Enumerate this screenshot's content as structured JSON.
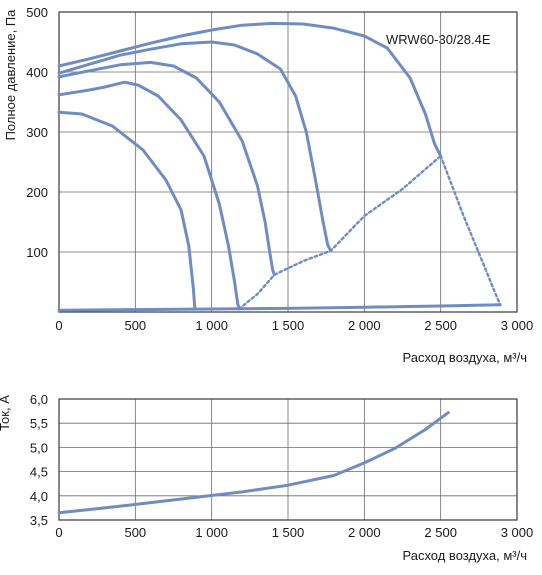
{
  "chart_data": [
    {
      "type": "line",
      "annotation": "WRW60-30/28.4E",
      "xlabel": "Расход воздуха, м³/ч",
      "ylabel": "Полное давление, Па",
      "xlim": [
        0,
        3000
      ],
      "ylim": [
        0,
        500
      ],
      "x_ticks": [
        0,
        500,
        1000,
        1500,
        2000,
        2500,
        3000
      ],
      "x_tick_labels": [
        "0",
        "500",
        "1 000",
        "1 500",
        "2 000",
        "2 500",
        "3 000"
      ],
      "y_ticks": [
        100,
        200,
        300,
        400,
        500
      ],
      "y_tick_labels": [
        "100",
        "200",
        "300",
        "400",
        "500"
      ],
      "grid": true,
      "color": "#6f8dc3",
      "series": [
        {
          "style": "solid",
          "points": [
            [
              0,
              333
            ],
            [
              150,
              330
            ],
            [
              350,
              310
            ],
            [
              550,
              270
            ],
            [
              700,
              220
            ],
            [
              800,
              170
            ],
            [
              850,
              110
            ],
            [
              880,
              40
            ],
            [
              890,
              5
            ]
          ]
        },
        {
          "style": "solid",
          "points": [
            [
              0,
              362
            ],
            [
              200,
              370
            ],
            [
              300,
              375
            ],
            [
              430,
              383
            ],
            [
              520,
              378
            ],
            [
              650,
              360
            ],
            [
              800,
              320
            ],
            [
              950,
              260
            ],
            [
              1050,
              180
            ],
            [
              1110,
              110
            ],
            [
              1150,
              50
            ],
            [
              1170,
              15
            ],
            [
              1180,
              5
            ]
          ]
        },
        {
          "style": "solid",
          "points": [
            [
              0,
              392
            ],
            [
              200,
              402
            ],
            [
              400,
              412
            ],
            [
              600,
              416
            ],
            [
              750,
              410
            ],
            [
              900,
              390
            ],
            [
              1050,
              350
            ],
            [
              1200,
              285
            ],
            [
              1300,
              210
            ],
            [
              1350,
              150
            ],
            [
              1380,
              100
            ],
            [
              1400,
              70
            ],
            [
              1410,
              62
            ]
          ]
        },
        {
          "style": "solid",
          "points": [
            [
              0,
              398
            ],
            [
              200,
              413
            ],
            [
              400,
              428
            ],
            [
              600,
              438
            ],
            [
              800,
              447
            ],
            [
              1000,
              450
            ],
            [
              1150,
              445
            ],
            [
              1300,
              430
            ],
            [
              1450,
              405
            ],
            [
              1550,
              360
            ],
            [
              1620,
              300
            ],
            [
              1680,
              220
            ],
            [
              1730,
              150
            ],
            [
              1760,
              112
            ],
            [
              1780,
              102
            ]
          ]
        },
        {
          "style": "solid",
          "points": [
            [
              0,
              410
            ],
            [
              200,
              422
            ],
            [
              400,
              435
            ],
            [
              600,
              448
            ],
            [
              800,
              460
            ],
            [
              1000,
              470
            ],
            [
              1200,
              478
            ],
            [
              1400,
              481
            ],
            [
              1600,
              480
            ],
            [
              1800,
              473
            ],
            [
              2000,
              460
            ],
            [
              2150,
              440
            ],
            [
              2300,
              390
            ],
            [
              2400,
              330
            ],
            [
              2460,
              280
            ],
            [
              2500,
              260
            ]
          ]
        },
        {
          "style": "dotted",
          "points": [
            [
              1180,
              5
            ],
            [
              1300,
              30
            ],
            [
              1410,
              62
            ],
            [
              1600,
              85
            ],
            [
              1780,
              102
            ],
            [
              2000,
              160
            ],
            [
              2250,
              205
            ],
            [
              2500,
              260
            ]
          ]
        },
        {
          "style": "dotted",
          "points": [
            [
              2500,
              260
            ],
            [
              2650,
              160
            ],
            [
              2780,
              80
            ],
            [
              2860,
              30
            ],
            [
              2890,
              12
            ]
          ]
        },
        {
          "style": "solid",
          "points": [
            [
              0,
              3
            ],
            [
              500,
              4
            ],
            [
              1000,
              5
            ],
            [
              1500,
              6
            ],
            [
              2000,
              8
            ],
            [
              2500,
              10
            ],
            [
              2890,
              12
            ]
          ]
        }
      ]
    },
    {
      "type": "line",
      "xlabel": "Расход воздуха, м³/ч",
      "ylabel": "Ток, А",
      "xlim": [
        0,
        3000
      ],
      "ylim": [
        3.5,
        6.0
      ],
      "x_ticks": [
        0,
        500,
        1000,
        1500,
        2000,
        2500,
        3000
      ],
      "x_tick_labels": [
        "0",
        "500",
        "1 000",
        "1 500",
        "2 000",
        "2 500",
        "3 000"
      ],
      "y_ticks": [
        3.5,
        4.0,
        4.5,
        5.0,
        5.5,
        6.0
      ],
      "y_tick_labels": [
        "3,5",
        "4,0",
        "4,5",
        "5,0",
        "5,5",
        "6,0"
      ],
      "grid": true,
      "color": "#6f8dc3",
      "series": [
        {
          "style": "solid",
          "points": [
            [
              0,
              3.65
            ],
            [
              300,
              3.75
            ],
            [
              600,
              3.86
            ],
            [
              900,
              3.97
            ],
            [
              1200,
              4.08
            ],
            [
              1500,
              4.22
            ],
            [
              1800,
              4.42
            ],
            [
              2000,
              4.68
            ],
            [
              2200,
              4.98
            ],
            [
              2400,
              5.37
            ],
            [
              2550,
              5.72
            ]
          ]
        }
      ]
    }
  ]
}
